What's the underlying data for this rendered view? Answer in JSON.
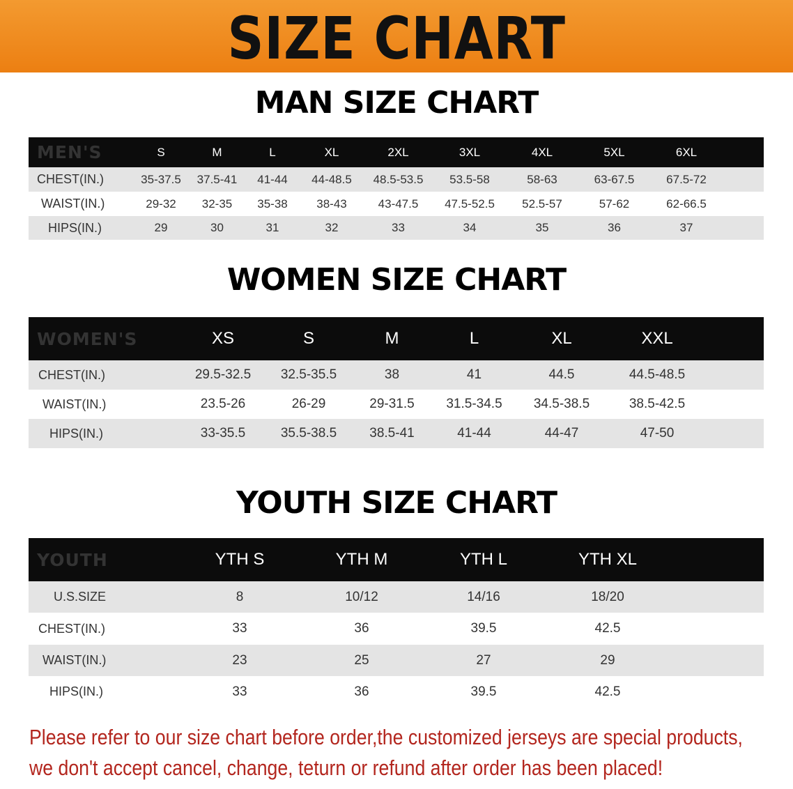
{
  "title": "SIZE CHART",
  "accent_color": "#ef8a1e",
  "men": {
    "heading": "MAN SIZE CHART",
    "label": "MEN'S",
    "sizes": [
      "S",
      "M",
      "L",
      "XL",
      "2XL",
      "3XL",
      "4XL",
      "5XL",
      "6XL"
    ],
    "rows": [
      {
        "label": "CHEST(IN.)",
        "values": [
          "35-37.5",
          "37.5-41",
          "41-44",
          "44-48.5",
          "48.5-53.5",
          "53.5-58",
          "58-63",
          "63-67.5",
          "67.5-72"
        ]
      },
      {
        "label": "WAIST(IN.)",
        "values": [
          "29-32",
          "32-35",
          "35-38",
          "38-43",
          "43-47.5",
          "47.5-52.5",
          "52.5-57",
          "57-62",
          "62-66.5"
        ]
      },
      {
        "label": "HIPS(IN.)",
        "values": [
          "29",
          "30",
          "31",
          "32",
          "33",
          "34",
          "35",
          "36",
          "37"
        ]
      }
    ]
  },
  "women": {
    "heading": "WOMEN SIZE CHART",
    "label": "WOMEN'S",
    "sizes": [
      "XS",
      "S",
      "M",
      "L",
      "XL",
      "XXL"
    ],
    "rows": [
      {
        "label": "CHEST(IN.)",
        "values": [
          "29.5-32.5",
          "32.5-35.5",
          "38",
          "41",
          "44.5",
          "44.5-48.5"
        ]
      },
      {
        "label": "WAIST(IN.)",
        "values": [
          "23.5-26",
          "26-29",
          "29-31.5",
          "31.5-34.5",
          "34.5-38.5",
          "38.5-42.5"
        ]
      },
      {
        "label": "HIPS(IN.)",
        "values": [
          "33-35.5",
          "35.5-38.5",
          "38.5-41",
          "41-44",
          "44-47",
          "47-50"
        ]
      }
    ]
  },
  "youth": {
    "heading": "YOUTH SIZE CHART",
    "label": "YOUTH",
    "sizes": [
      "YTH S",
      "YTH M",
      "YTH L",
      "YTH XL"
    ],
    "rows": [
      {
        "label": "U.S.SIZE",
        "values": [
          "8",
          "10/12",
          "14/16",
          "18/20"
        ]
      },
      {
        "label": "CHEST(IN.)",
        "values": [
          "33",
          "36",
          "39.5",
          "42.5"
        ]
      },
      {
        "label": "WAIST(IN.)",
        "values": [
          "23",
          "25",
          "27",
          "29"
        ]
      },
      {
        "label": "HIPS(IN.)",
        "values": [
          "33",
          "36",
          "39.5",
          "42.5"
        ]
      }
    ]
  },
  "notice": [
    "Please refer to our size chart before order,the customized jerseys are special products,",
    "we don't accept cancel, change, teturn or refund after order has been placed!"
  ]
}
